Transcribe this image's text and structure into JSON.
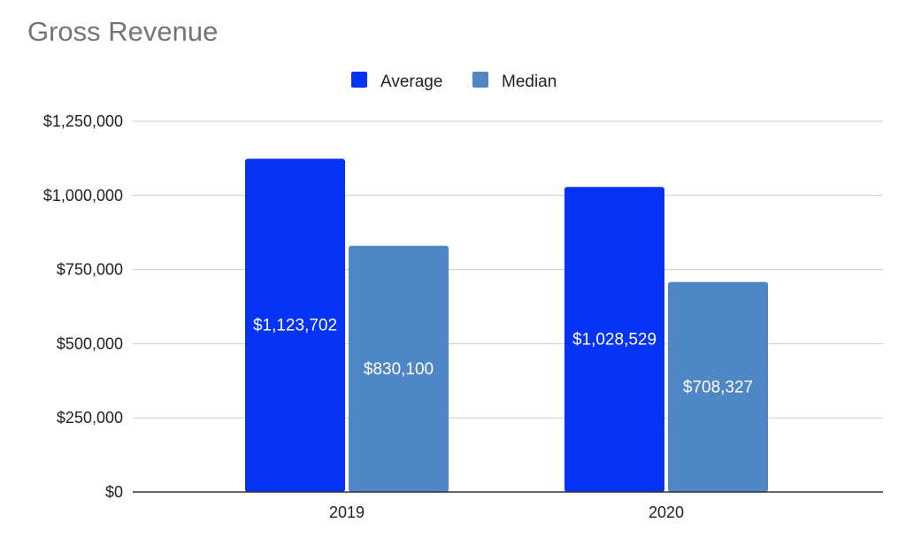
{
  "chart_data": {
    "type": "bar",
    "title": "Gross Revenue",
    "categories": [
      "2019",
      "2020"
    ],
    "series": [
      {
        "name": "Average",
        "color": "#0433f5",
        "values": [
          1123702,
          1028529
        ],
        "labels": [
          "$1,123,702",
          "$1,028,529"
        ]
      },
      {
        "name": "Median",
        "color": "#4f86c6",
        "values": [
          830100,
          708327
        ],
        "labels": [
          "$830,100",
          "$708,327"
        ]
      }
    ],
    "ylim": [
      0,
      1250000
    ],
    "yticks": [
      0,
      250000,
      500000,
      750000,
      1000000,
      1250000
    ],
    "ytick_labels": [
      "$0",
      "$250,000",
      "$500,000",
      "$750,000",
      "$1,000,000",
      "$1,250,000"
    ],
    "grid": true,
    "legend_position": "top-center",
    "xlabel": "",
    "ylabel": ""
  }
}
